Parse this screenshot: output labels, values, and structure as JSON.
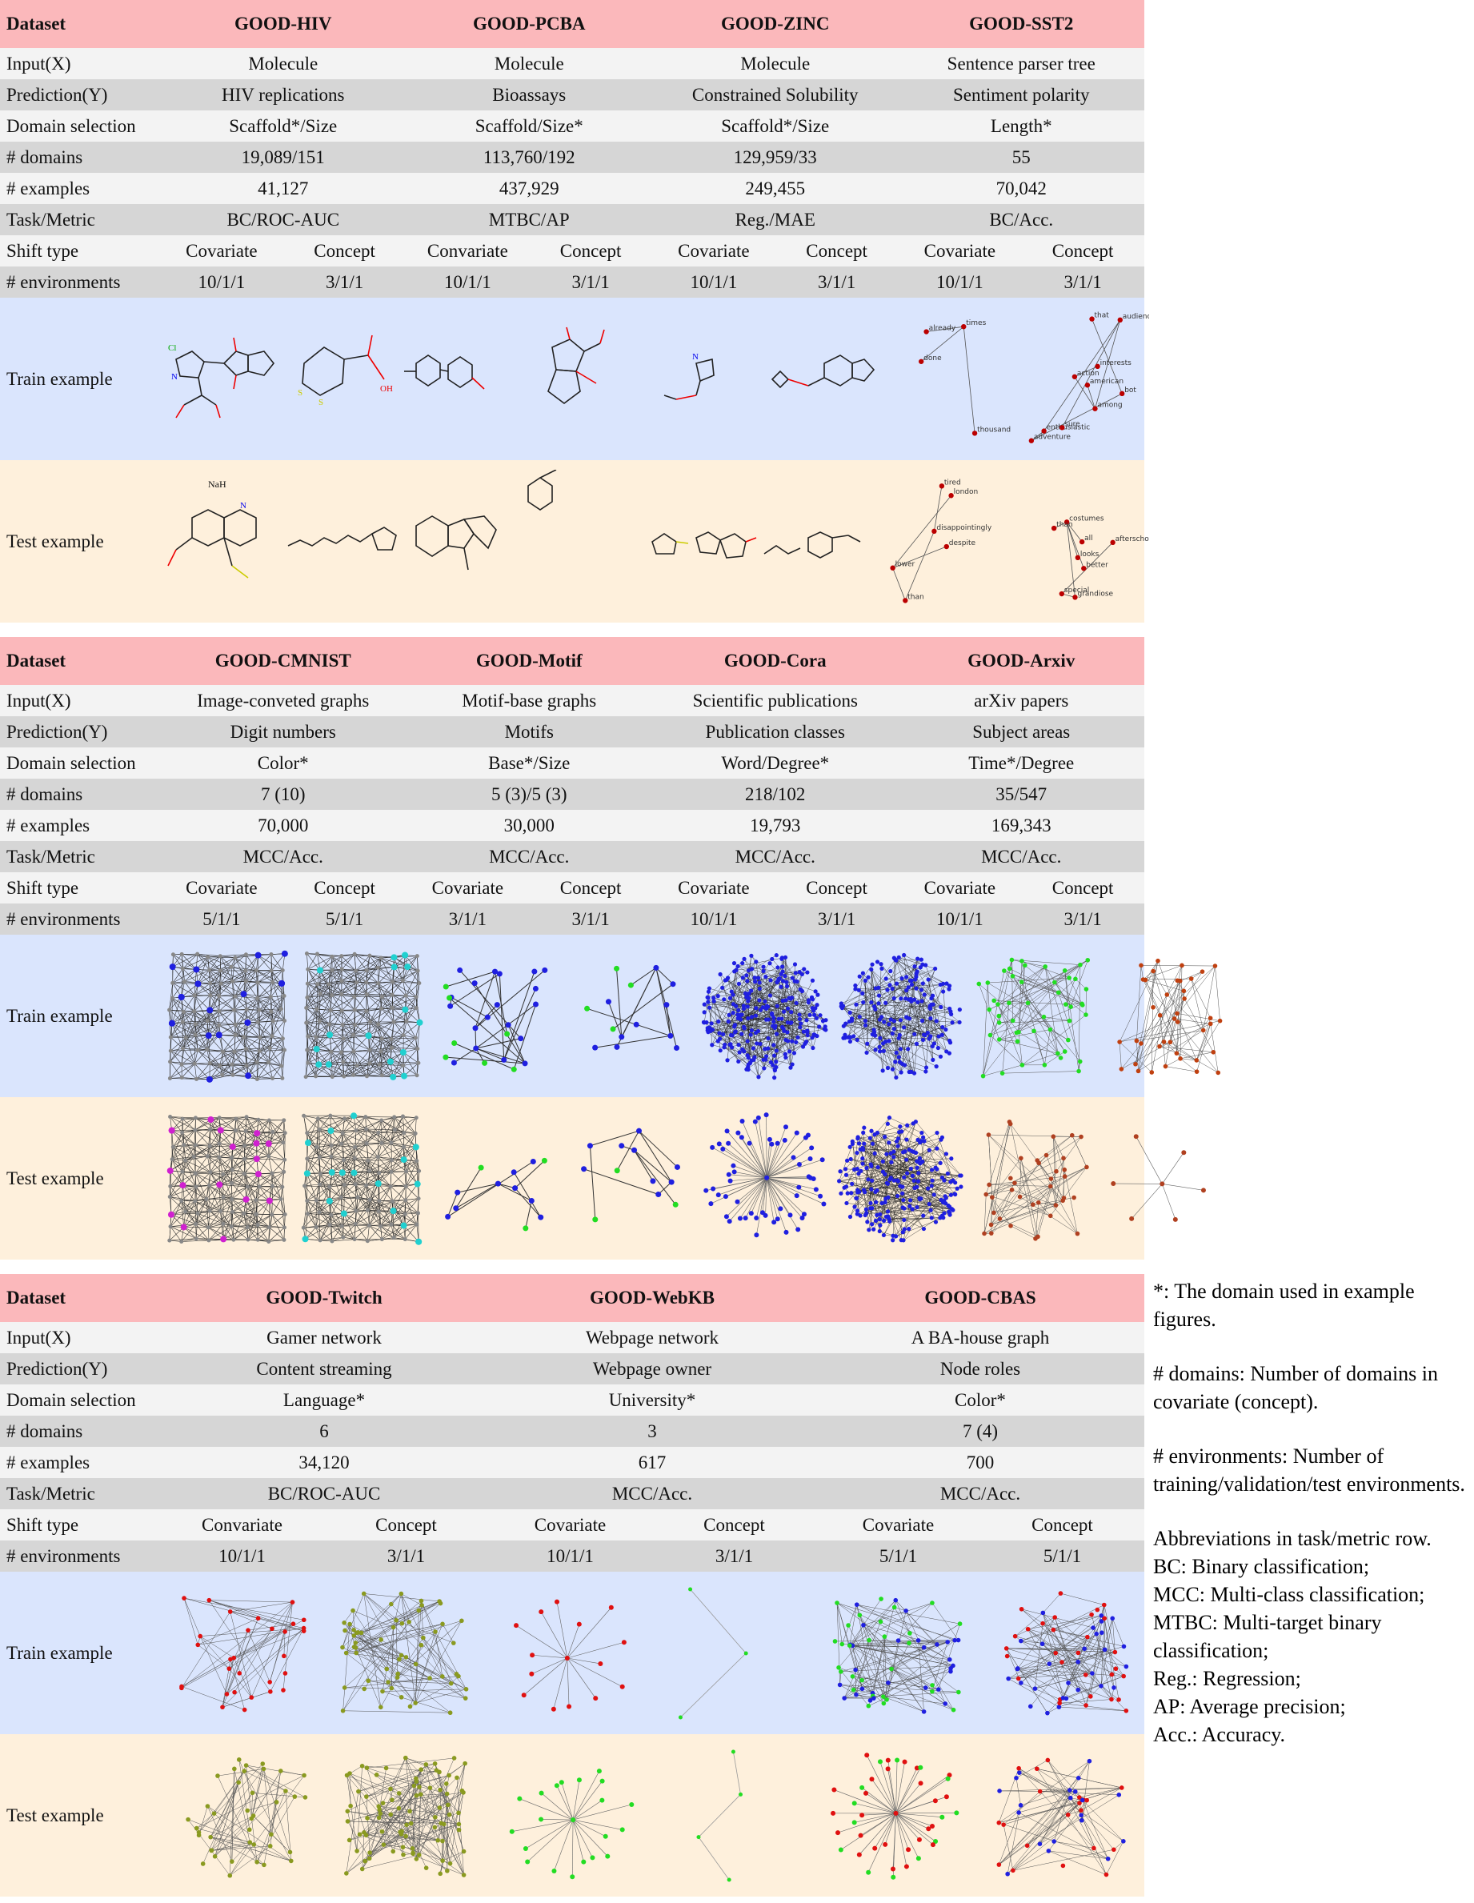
{
  "row_labels": {
    "dataset": "Dataset",
    "input": "Input(X)",
    "prediction": "Prediction(Y)",
    "domain_selection": "Domain selection",
    "n_domains": "# domains",
    "n_examples": "# examples",
    "task_metric": "Task/Metric",
    "shift_type": "Shift type",
    "n_environments": "# environments",
    "train_example": "Train example",
    "test_example": "Test example"
  },
  "shift_labels": {
    "covariate": "Covariate",
    "concept": "Concept"
  },
  "panels": [
    {
      "datasets": [
        {
          "name": "GOOD-HIV",
          "input": "Molecule",
          "prediction": "HIV replications",
          "domain_selection": "Scaffold*/Size",
          "n_domains": "19,089/151",
          "n_examples": "41,127",
          "task_metric": "BC/ROC-AUC",
          "covariate_label": "Covariate",
          "env_covariate": "10/1/1",
          "env_concept": "3/1/1"
        },
        {
          "name": "GOOD-PCBA",
          "input": "Molecule",
          "prediction": "Bioassays",
          "domain_selection": "Scaffold/Size*",
          "n_domains": "113,760/192",
          "n_examples": "437,929",
          "task_metric": "MTBC/AP",
          "covariate_label": "Convariate",
          "env_covariate": "10/1/1",
          "env_concept": "3/1/1"
        },
        {
          "name": "GOOD-ZINC",
          "input": "Molecule",
          "prediction": "Constrained Solubility",
          "domain_selection": "Scaffold*/Size",
          "n_domains": "129,959/33",
          "n_examples": "249,455",
          "task_metric": "Reg./MAE",
          "covariate_label": "Covariate",
          "env_covariate": "10/1/1",
          "env_concept": "3/1/1"
        },
        {
          "name": "GOOD-SST2",
          "input": "Sentence parser tree",
          "prediction": "Sentiment polarity",
          "domain_selection": "Length*",
          "n_domains": "55",
          "n_examples": "70,042",
          "task_metric": "BC/Acc.",
          "covariate_label": "Covariate",
          "env_covariate": "10/1/1",
          "env_concept": "3/1/1"
        }
      ]
    },
    {
      "datasets": [
        {
          "name": "GOOD-CMNIST",
          "input": "Image-conveted graphs",
          "prediction": "Digit numbers",
          "domain_selection": "Color*",
          "n_domains": "7 (10)",
          "n_examples": "70,000",
          "task_metric": "MCC/Acc.",
          "covariate_label": "Covariate",
          "env_covariate": "5/1/1",
          "env_concept": "5/1/1"
        },
        {
          "name": "GOOD-Motif",
          "input": "Motif-base graphs",
          "prediction": "Motifs",
          "domain_selection": "Base*/Size",
          "n_domains": "5 (3)/5 (3)",
          "n_examples": "30,000",
          "task_metric": "MCC/Acc.",
          "covariate_label": "Covariate",
          "env_covariate": "3/1/1",
          "env_concept": "3/1/1"
        },
        {
          "name": "GOOD-Cora",
          "input": "Scientific publications",
          "prediction": "Publication classes",
          "domain_selection": "Word/Degree*",
          "n_domains": "218/102",
          "n_examples": "19,793",
          "task_metric": "MCC/Acc.",
          "covariate_label": "Covariate",
          "env_covariate": "10/1/1",
          "env_concept": "3/1/1"
        },
        {
          "name": "GOOD-Arxiv",
          "input": "arXiv papers",
          "prediction": "Subject areas",
          "domain_selection": "Time*/Degree",
          "n_domains": "35/547",
          "n_examples": "169,343",
          "task_metric": "MCC/Acc.",
          "covariate_label": "Covariate",
          "env_covariate": "10/1/1",
          "env_concept": "3/1/1"
        }
      ]
    },
    {
      "datasets": [
        {
          "name": "GOOD-Twitch",
          "input": "Gamer network",
          "prediction": "Content streaming",
          "domain_selection": "Language*",
          "n_domains": "6",
          "n_examples": "34,120",
          "task_metric": "BC/ROC-AUC",
          "covariate_label": "Convariate",
          "env_covariate": "10/1/1",
          "env_concept": "3/1/1"
        },
        {
          "name": "GOOD-WebKB",
          "input": "Webpage network",
          "prediction": "Webpage owner",
          "domain_selection": "University*",
          "n_domains": "3",
          "n_examples": "617",
          "task_metric": "MCC/Acc.",
          "covariate_label": "Covariate",
          "env_covariate": "10/1/1",
          "env_concept": "3/1/1"
        },
        {
          "name": "GOOD-CBAS",
          "input": "A BA-house graph",
          "prediction": "Node roles",
          "domain_selection": "Color*",
          "n_domains": "7 (4)",
          "n_examples": "700",
          "task_metric": "MCC/Acc.",
          "covariate_label": "Covariate",
          "env_covariate": "5/1/1",
          "env_concept": "5/1/1"
        }
      ]
    }
  ],
  "figure_text": {
    "sst2_train": [
      "enthusiastic",
      "audience",
      "sure",
      "among",
      "american",
      "action",
      "adventure",
      "bot",
      "interests",
      "that",
      "already",
      "times",
      "done",
      "thousand"
    ],
    "sst2_test": [
      "lower",
      "than",
      "disappointingly",
      "afterschool",
      "special",
      "grandiose",
      "costumes",
      "despite",
      "london",
      "tired",
      "better",
      "looks",
      "than",
      "all"
    ],
    "hiv_test_salt": "NaH"
  },
  "notes": {
    "star": "*: The domain used in example figures.",
    "domains": "# domains: Number of domains in covariate (concept).",
    "environments": "# environments: Number of training/validation/test environments.",
    "abbr_title": "Abbreviations in task/metric row.",
    "abbr": [
      "BC: Binary classification;",
      "MCC: Multi-class classification;",
      "MTBC: Multi-target binary classification;",
      "Reg.: Regression;",
      "AP: Average precision;",
      "Acc.: Accuracy."
    ]
  },
  "colors": {
    "header": "#fbb8bb",
    "train_bg": "#dae5fd",
    "test_bg": "#fef0dc",
    "row_light": "#f3f3f3",
    "row_dark": "#d6d6d6",
    "node_blue": "#1f1fe0",
    "node_green": "#22dd22",
    "node_red": "#e01010",
    "node_cyan": "#20d0d0",
    "node_magenta": "#d020d0",
    "node_olive": "#8a9a20"
  }
}
